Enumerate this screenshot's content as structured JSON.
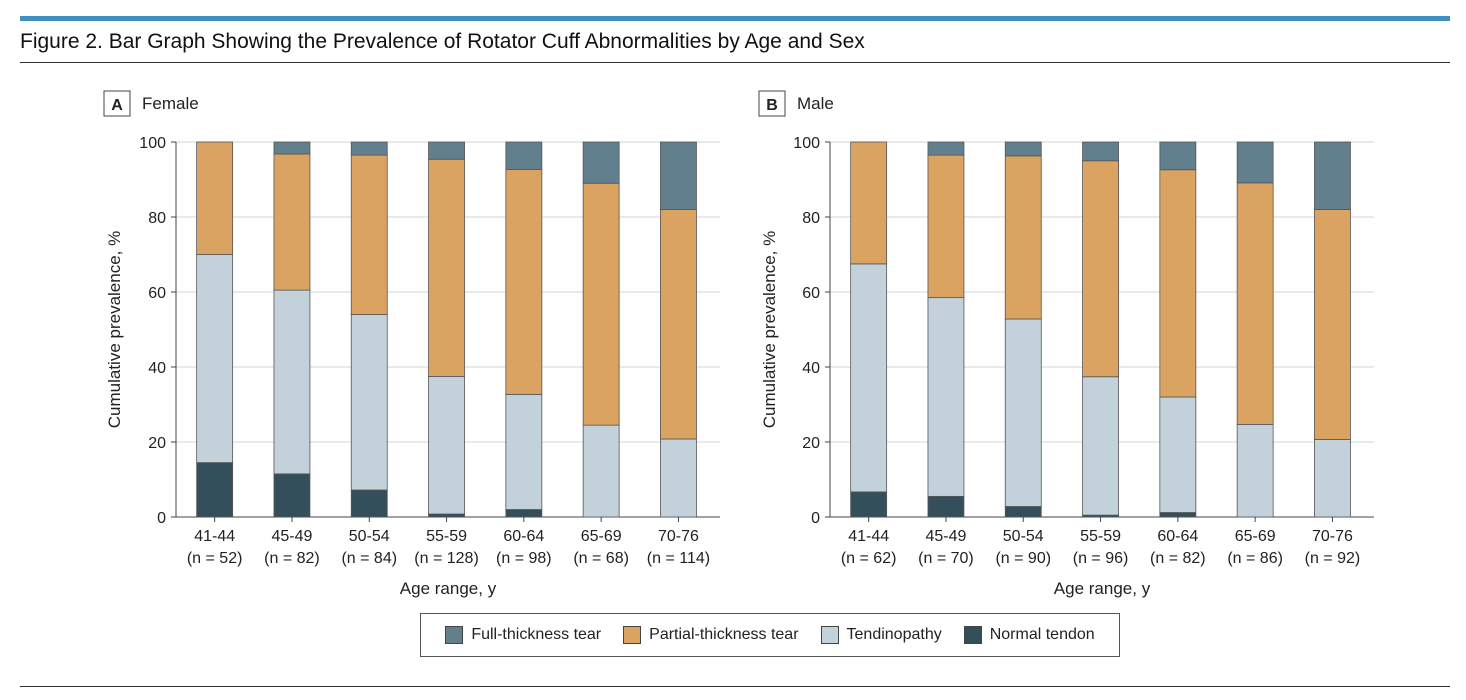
{
  "figure": {
    "title": "Figure 2. Bar Graph Showing the Prevalence of Rotator Cuff Abnormalities by Age and Sex"
  },
  "colors": {
    "full": "#627f8d",
    "partial": "#dba362",
    "tendinopathy": "#c2d1da",
    "normal": "#344f5c",
    "accent": "#3f8fc1"
  },
  "legend": {
    "items": [
      {
        "key": "full",
        "label": "Full-thickness tear"
      },
      {
        "key": "partial",
        "label": "Partial-thickness tear"
      },
      {
        "key": "tendinopathy",
        "label": "Tendinopathy"
      },
      {
        "key": "normal",
        "label": "Normal tendon"
      }
    ]
  },
  "chart_data": [
    {
      "type": "bar",
      "stacked": true,
      "panel_letter": "A",
      "title": "Female",
      "xlabel": "Age range, y",
      "ylabel": "Cumulative prevalence, %",
      "ylim": [
        0,
        100
      ],
      "yticks": [
        0,
        20,
        40,
        60,
        80,
        100
      ],
      "grid": true,
      "categories": [
        "41-44",
        "45-49",
        "50-54",
        "55-59",
        "60-64",
        "65-69",
        "70-76"
      ],
      "n_labels": [
        "(n = 52)",
        "(n = 82)",
        "(n = 84)",
        "(n = 128)",
        "(n = 98)",
        "(n = 68)",
        "(n = 114)"
      ],
      "series": [
        {
          "name": "Normal tendon",
          "key": "normal",
          "values": [
            14.5,
            11.5,
            7.2,
            0.8,
            2.0,
            0.0,
            0.0
          ]
        },
        {
          "name": "Tendinopathy",
          "key": "tendinopathy",
          "values": [
            55.5,
            49.0,
            46.8,
            36.7,
            30.7,
            24.5,
            20.8
          ]
        },
        {
          "name": "Partial-thickness tear",
          "key": "partial",
          "values": [
            30.0,
            36.3,
            42.5,
            57.9,
            60.0,
            64.5,
            61.2
          ]
        },
        {
          "name": "Full-thickness tear",
          "key": "full",
          "values": [
            0.0,
            3.2,
            3.5,
            4.6,
            7.3,
            11.0,
            18.0
          ]
        }
      ]
    },
    {
      "type": "bar",
      "stacked": true,
      "panel_letter": "B",
      "title": "Male",
      "xlabel": "Age range, y",
      "ylabel": "Cumulative prevalence, %",
      "ylim": [
        0,
        100
      ],
      "yticks": [
        0,
        20,
        40,
        60,
        80,
        100
      ],
      "grid": true,
      "categories": [
        "41-44",
        "45-49",
        "50-54",
        "55-59",
        "60-64",
        "65-69",
        "70-76"
      ],
      "n_labels": [
        "(n = 62)",
        "(n = 70)",
        "(n = 90)",
        "(n = 96)",
        "(n = 82)",
        "(n = 86)",
        "(n = 92)"
      ],
      "series": [
        {
          "name": "Normal tendon",
          "key": "normal",
          "values": [
            6.7,
            5.5,
            2.8,
            0.5,
            1.2,
            0.0,
            0.0
          ]
        },
        {
          "name": "Tendinopathy",
          "key": "tendinopathy",
          "values": [
            60.8,
            53.0,
            50.0,
            36.9,
            30.8,
            24.7,
            20.7
          ]
        },
        {
          "name": "Partial-thickness tear",
          "key": "partial",
          "values": [
            32.5,
            38.0,
            43.5,
            57.6,
            60.6,
            64.4,
            61.3
          ]
        },
        {
          "name": "Full-thickness tear",
          "key": "full",
          "values": [
            0.0,
            3.5,
            3.7,
            5.0,
            7.4,
            10.9,
            18.0
          ]
        }
      ]
    }
  ]
}
